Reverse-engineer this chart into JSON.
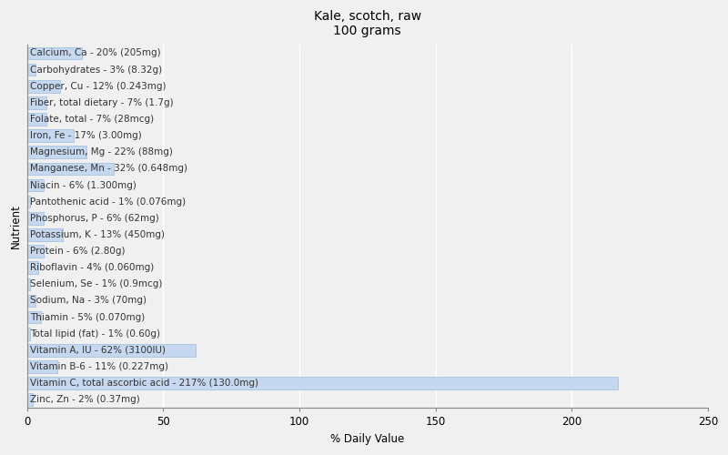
{
  "title": "Kale, scotch, raw\n100 grams",
  "xlabel": "% Daily Value",
  "ylabel": "Nutrient",
  "background_color": "#f0f0f0",
  "plot_bg_color": "#f0f0f0",
  "bar_color": "#c5d8f0",
  "bar_edge_color": "#8ab4d8",
  "nutrients": [
    {
      "label": "Calcium, Ca - 20% (205mg)",
      "value": 20
    },
    {
      "label": "Carbohydrates - 3% (8.32g)",
      "value": 3
    },
    {
      "label": "Copper, Cu - 12% (0.243mg)",
      "value": 12
    },
    {
      "label": "Fiber, total dietary - 7% (1.7g)",
      "value": 7
    },
    {
      "label": "Folate, total - 7% (28mcg)",
      "value": 7
    },
    {
      "label": "Iron, Fe - 17% (3.00mg)",
      "value": 17
    },
    {
      "label": "Magnesium, Mg - 22% (88mg)",
      "value": 22
    },
    {
      "label": "Manganese, Mn - 32% (0.648mg)",
      "value": 32
    },
    {
      "label": "Niacin - 6% (1.300mg)",
      "value": 6
    },
    {
      "label": "Pantothenic acid - 1% (0.076mg)",
      "value": 1
    },
    {
      "label": "Phosphorus, P - 6% (62mg)",
      "value": 6
    },
    {
      "label": "Potassium, K - 13% (450mg)",
      "value": 13
    },
    {
      "label": "Protein - 6% (2.80g)",
      "value": 6
    },
    {
      "label": "Riboflavin - 4% (0.060mg)",
      "value": 4
    },
    {
      "label": "Selenium, Se - 1% (0.9mcg)",
      "value": 1
    },
    {
      "label": "Sodium, Na - 3% (70mg)",
      "value": 3
    },
    {
      "label": "Thiamin - 5% (0.070mg)",
      "value": 5
    },
    {
      "label": "Total lipid (fat) - 1% (0.60g)",
      "value": 1
    },
    {
      "label": "Vitamin A, IU - 62% (3100IU)",
      "value": 62
    },
    {
      "label": "Vitamin B-6 - 11% (0.227mg)",
      "value": 11
    },
    {
      "label": "Vitamin C, total ascorbic acid - 217% (130.0mg)",
      "value": 217
    },
    {
      "label": "Zinc, Zn - 2% (0.37mg)",
      "value": 2
    }
  ],
  "xlim": [
    0,
    250
  ],
  "xticks": [
    0,
    50,
    100,
    150,
    200,
    250
  ],
  "title_fontsize": 10,
  "label_fontsize": 7.5,
  "axis_fontsize": 8.5,
  "grid_color": "#ffffff",
  "text_color": "#333333"
}
